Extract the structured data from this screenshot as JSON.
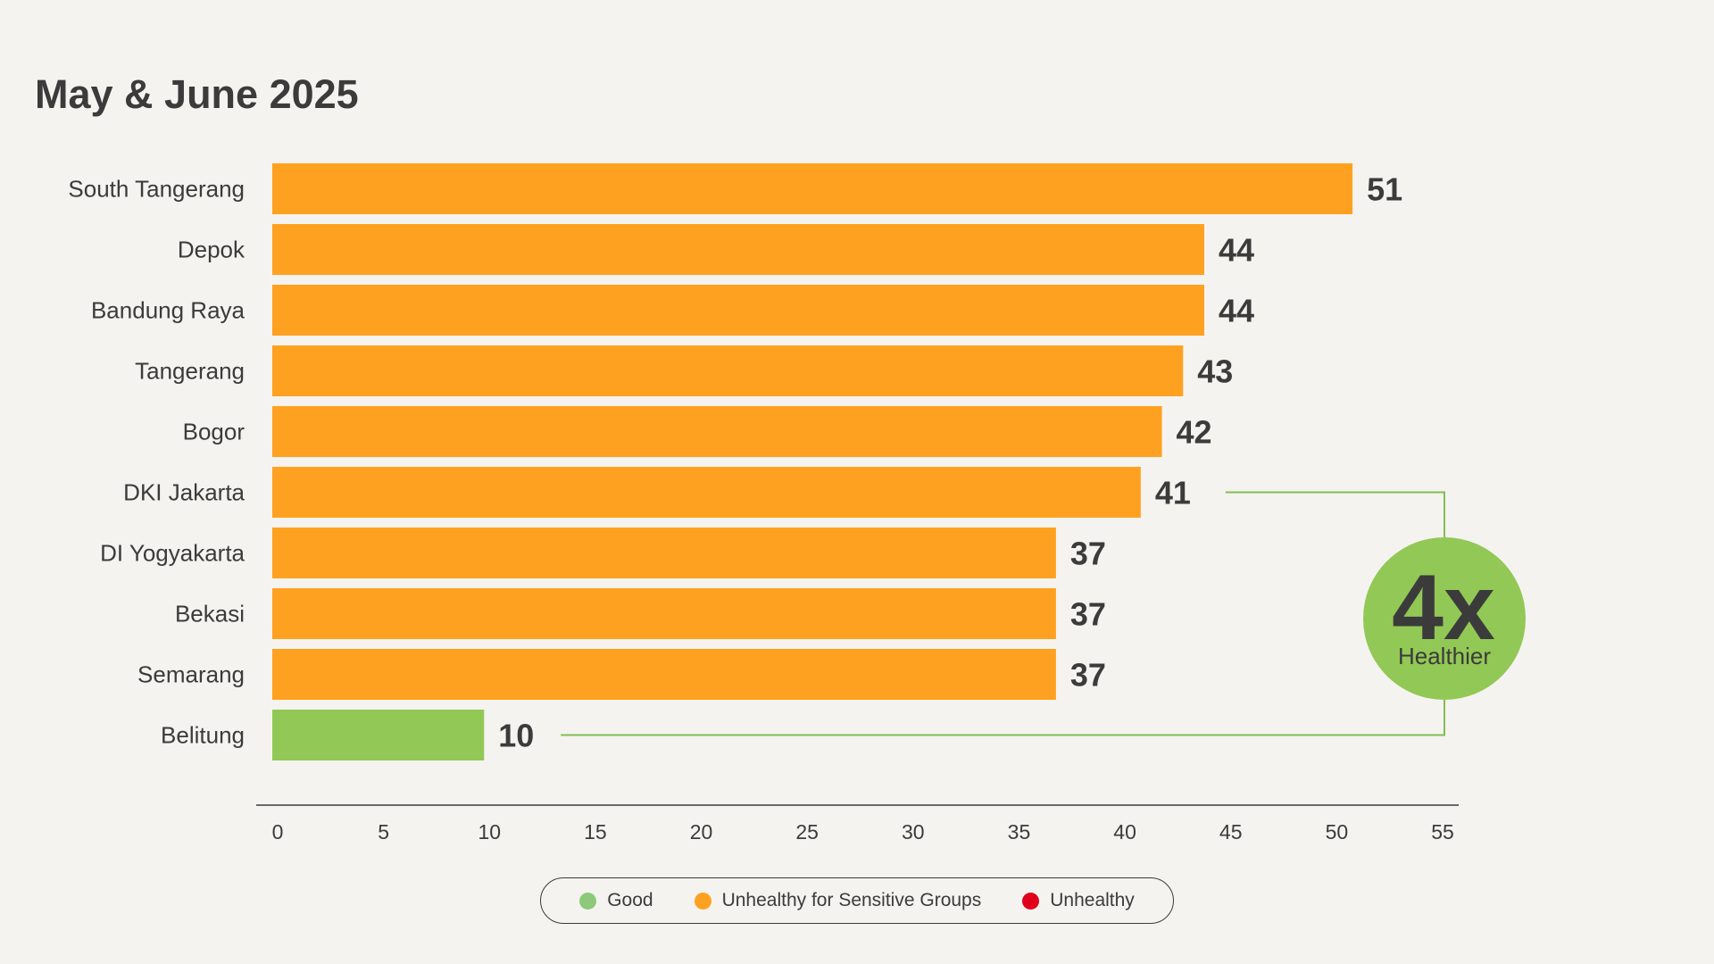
{
  "chart_data": {
    "type": "bar",
    "orientation": "horizontal",
    "title": "May & June 2025",
    "categories": [
      "South Tangerang",
      "Depok",
      "Bandung Raya",
      "Tangerang",
      "Bogor",
      "DKI Jakarta",
      "DI Yogyakarta",
      "Bekasi",
      "Semarang",
      "Belitung"
    ],
    "values": [
      51,
      44,
      44,
      43,
      42,
      41,
      37,
      37,
      37,
      10
    ],
    "value_labels": [
      "51",
      "44",
      "44",
      "43",
      "42",
      "41",
      "37",
      "37",
      "37",
      "10"
    ],
    "bar_status": [
      "Unhealthy for Sensitive Groups",
      "Unhealthy for Sensitive Groups",
      "Unhealthy for Sensitive Groups",
      "Unhealthy for Sensitive Groups",
      "Unhealthy for Sensitive Groups",
      "Unhealthy for Sensitive Groups",
      "Unhealthy for Sensitive Groups",
      "Unhealthy for Sensitive Groups",
      "Unhealthy for Sensitive Groups",
      "Good"
    ],
    "xlim": [
      0,
      55
    ],
    "xticks": [
      0,
      5,
      10,
      15,
      20,
      25,
      30,
      35,
      40,
      45,
      50,
      55
    ],
    "xlabel": "",
    "ylabel": "",
    "grid": false,
    "legend_placement": "bottom-center",
    "legend": [
      {
        "label": "Good",
        "color": "#8cc97a"
      },
      {
        "label": "Unhealthy for Sensitive Groups",
        "color": "#ffa120"
      },
      {
        "label": "Unhealthy",
        "color": "#e0001b"
      }
    ],
    "colors": {
      "Good": "#92c855",
      "Unhealthy for Sensitive Groups": "#ffa120",
      "Unhealthy": "#e0001b"
    },
    "annotation": {
      "big_text": "4x",
      "small_text": "Healthier",
      "connects": [
        "DKI Jakarta",
        "Belitung"
      ],
      "circle_color": "#92c855",
      "line_color": "#7fbf4f"
    }
  }
}
